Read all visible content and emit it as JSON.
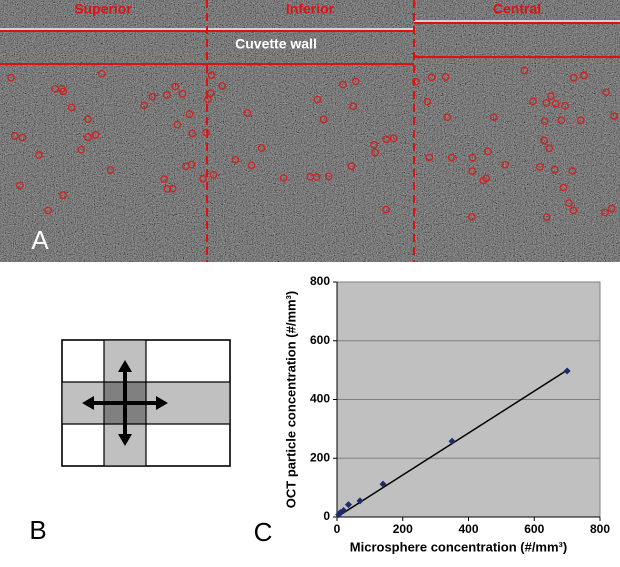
{
  "panel_a": {
    "label": "A",
    "regions": [
      "Superior",
      "Inferior",
      "Central"
    ],
    "annotation": "Cuvette wall"
  },
  "panel_b": {
    "label": "B"
  },
  "chart_data": {
    "type": "scatter",
    "panel_label": "C",
    "x_label": "Microsphere concentration (#/mm³)",
    "y_label": "OCT particle concentration (#/mm³)",
    "x": [
      5,
      10,
      20,
      35,
      70,
      140,
      350,
      700
    ],
    "values": [
      8,
      15,
      22,
      42,
      55,
      112,
      258,
      497
    ],
    "color": "#1f2a6b",
    "trendline": {
      "x": [
        0,
        700
      ],
      "y": [
        0,
        500
      ],
      "color": "#000000"
    },
    "xlim": [
      0,
      800
    ],
    "xticks": [
      0,
      200,
      400,
      600,
      800
    ],
    "ylim": [
      0,
      800
    ],
    "yticks": [
      0,
      200,
      400,
      600,
      800
    ],
    "grid": true
  }
}
